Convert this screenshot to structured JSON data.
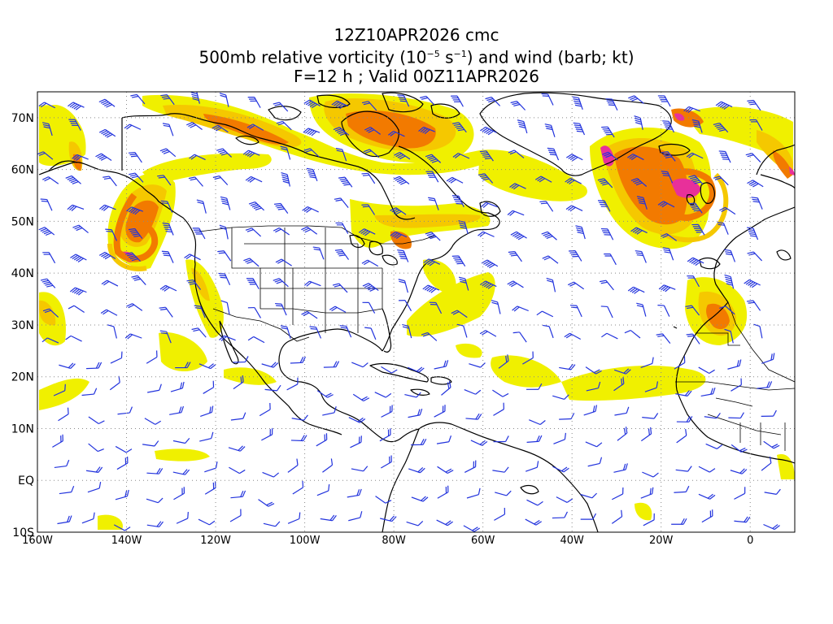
{
  "title": {
    "line1": "12Z10APR2026 cmc",
    "line2_pre": "500mb relative vorticity (10",
    "line2_exp1": "−5",
    "line2_mid": " s",
    "line2_exp2": "−1",
    "line2_post": ") and wind (barb; kt)",
    "line3": "F=12 h ; Valid 00Z11APR2026"
  },
  "map_data": {
    "type": "contour_map",
    "projection": "cylindrical",
    "lon_range": [
      -160,
      10
    ],
    "lat_range": [
      -10,
      75
    ],
    "grid": "dotted",
    "lon_ticks": [
      {
        "value": -160,
        "label": "160W"
      },
      {
        "value": -140,
        "label": "140W"
      },
      {
        "value": -120,
        "label": "120W"
      },
      {
        "value": -100,
        "label": "100W"
      },
      {
        "value": -80,
        "label": "80W"
      },
      {
        "value": -60,
        "label": "60W"
      },
      {
        "value": -40,
        "label": "40W"
      },
      {
        "value": -20,
        "label": "20W"
      },
      {
        "value": 0,
        "label": "0"
      }
    ],
    "lat_ticks": [
      {
        "value": 70,
        "label": "70N"
      },
      {
        "value": 60,
        "label": "60N"
      },
      {
        "value": 50,
        "label": "50N"
      },
      {
        "value": 40,
        "label": "40N"
      },
      {
        "value": 30,
        "label": "30N"
      },
      {
        "value": 20,
        "label": "20N"
      },
      {
        "value": 10,
        "label": "10N"
      },
      {
        "value": 0,
        "label": "EQ"
      },
      {
        "value": -10,
        "label": "10S"
      }
    ],
    "colors": {
      "weak": "#f0f000",
      "moderate": "#f5c800",
      "strong": "#f27a00",
      "max": "#e8309a",
      "barb": "#2233dd",
      "coast": "#000000"
    }
  }
}
